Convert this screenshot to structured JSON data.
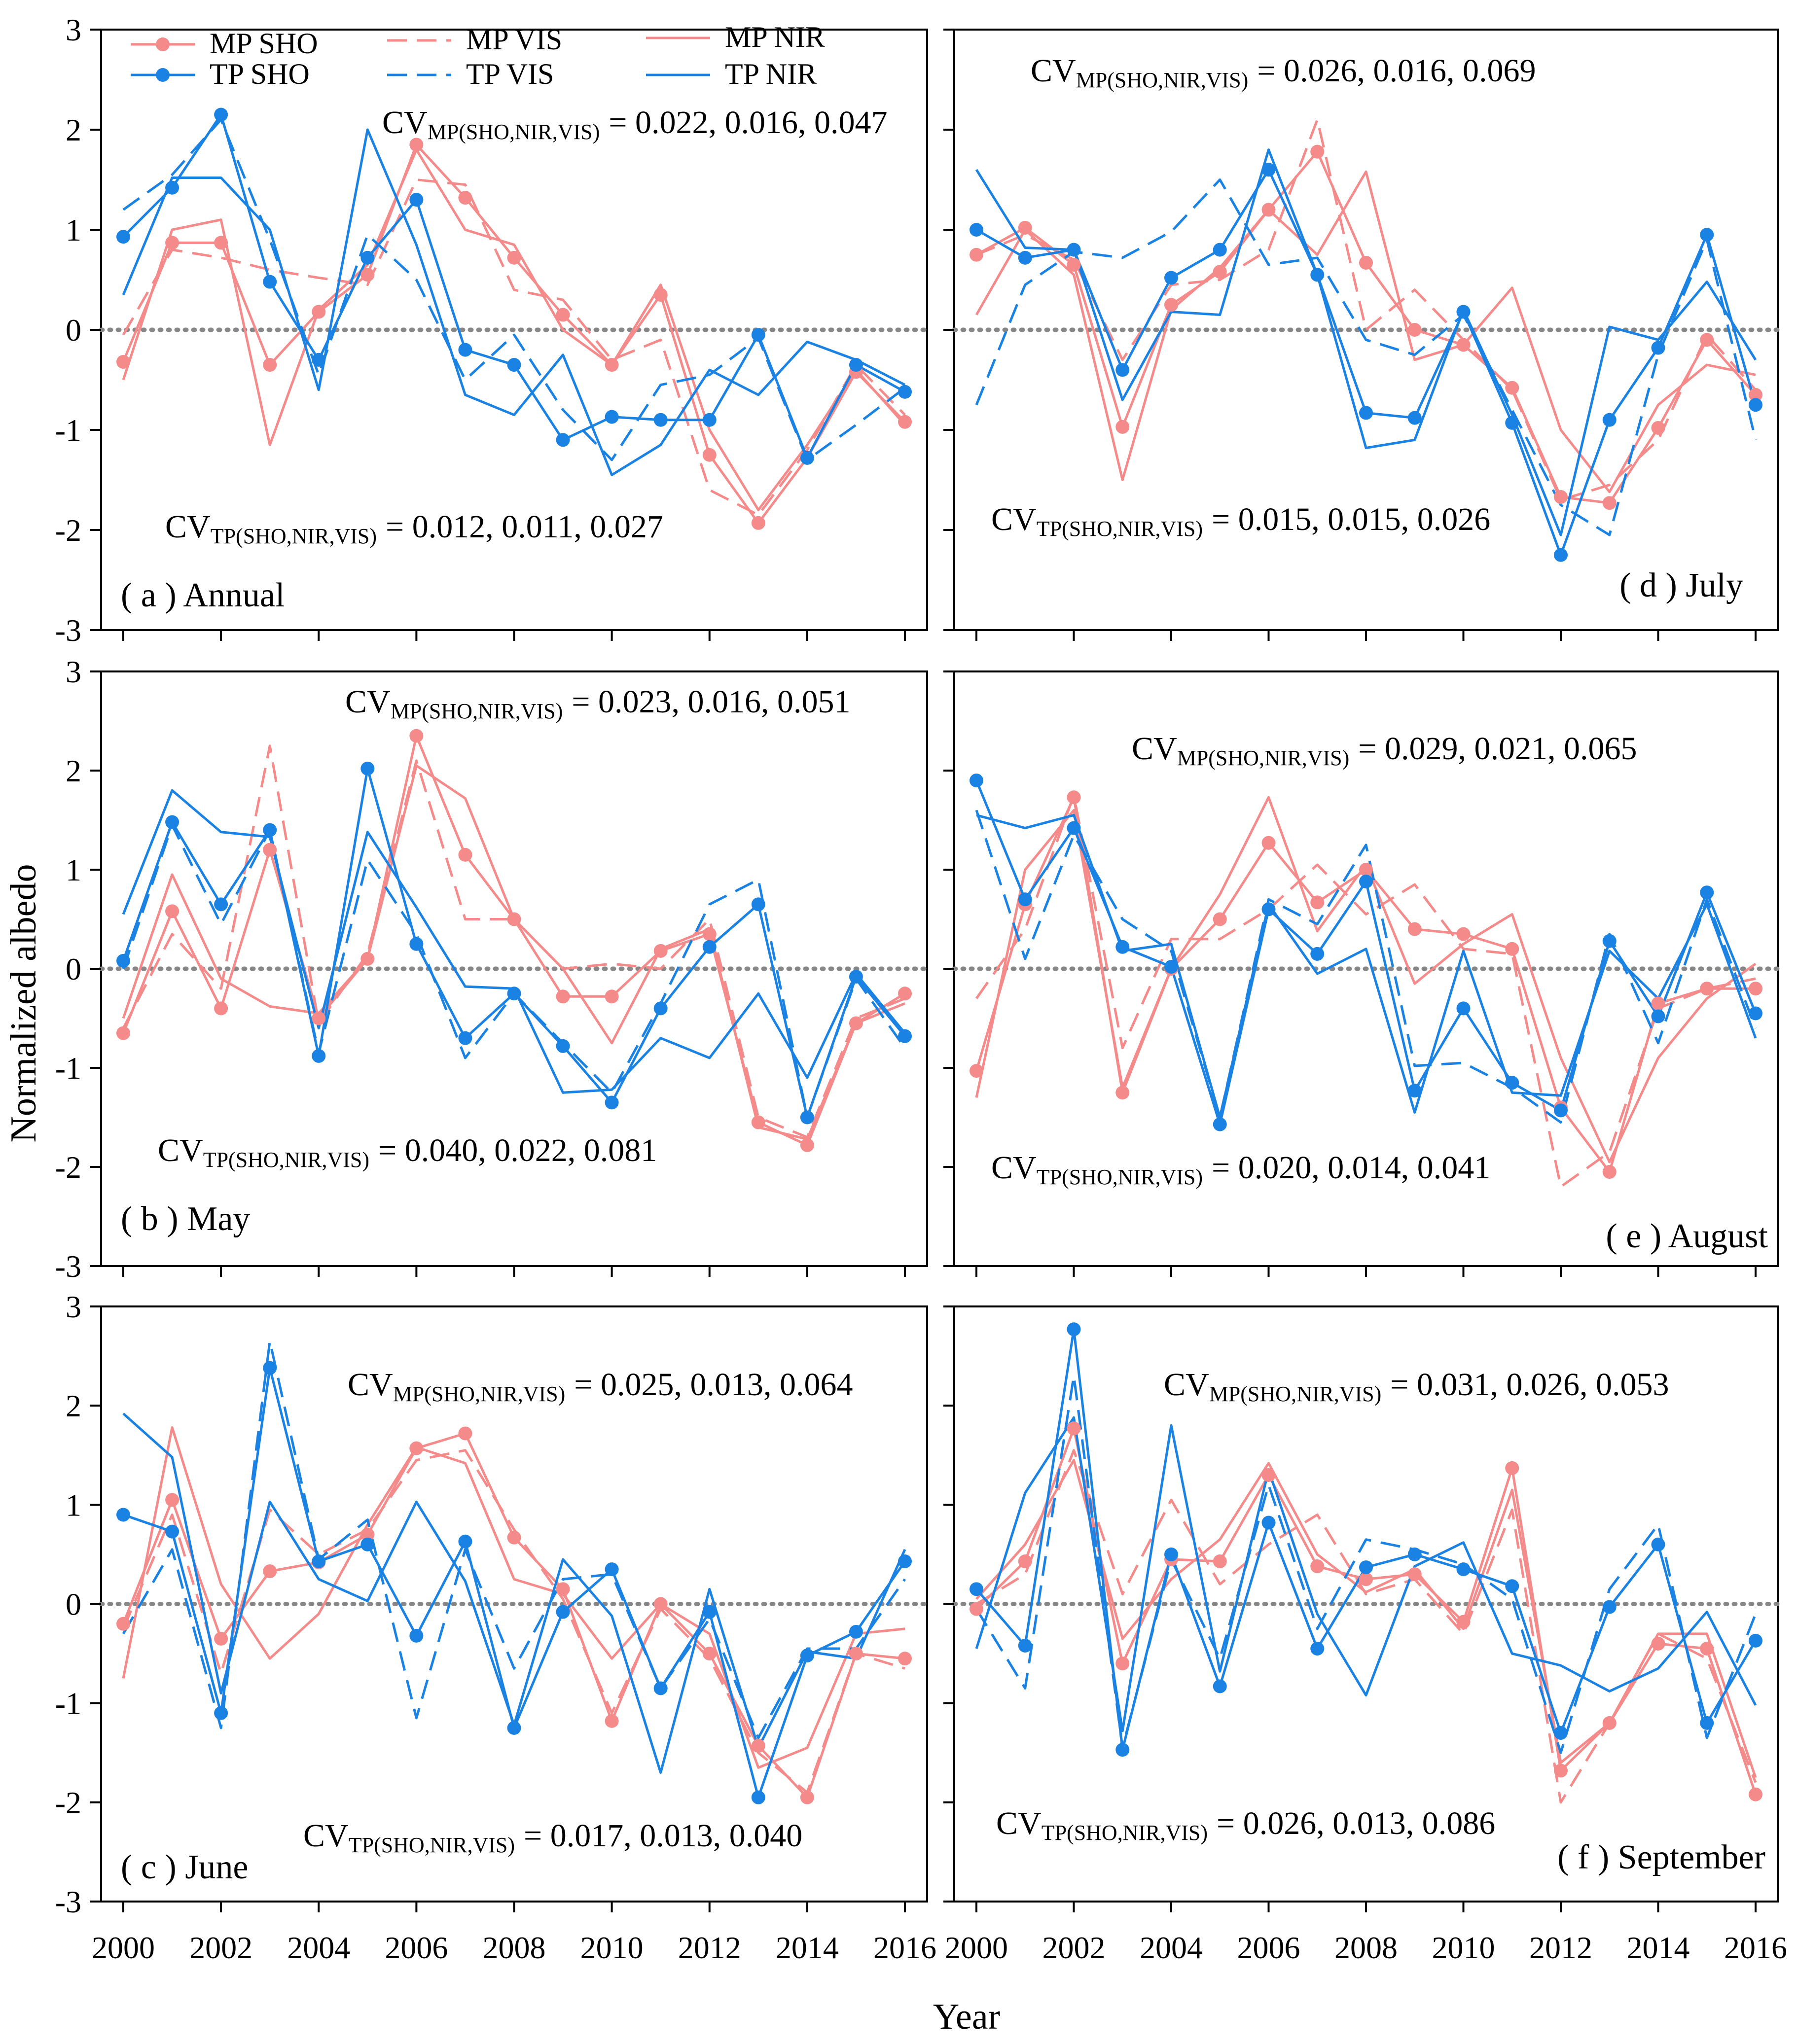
{
  "figure": {
    "ylabel": "Normalized albedo",
    "xlabel": "Year",
    "colors": {
      "MP": "#F48A8A",
      "TP": "#1A82E3",
      "zero_line": "#888888"
    },
    "legend": [
      "MP SHO",
      "MP VIS",
      "MP NIR",
      "TP SHO",
      "TP VIS",
      "TP NIR"
    ]
  },
  "chart_data": [
    {
      "type": "line",
      "title": "( a ) Annual",
      "cv_mp": "= 0.022, 0.016, 0.047",
      "cv_tp": "= 0.012, 0.011, 0.027",
      "cv_mp_label": "CV",
      "cv_mp_sub": "MP(SHO,NIR,VIS)",
      "cv_tp_label": "CV",
      "cv_tp_sub": "TP(SHO,NIR,VIS)",
      "x": [
        2000,
        2001,
        2002,
        2003,
        2004,
        2005,
        2006,
        2007,
        2008,
        2009,
        2010,
        2011,
        2012,
        2013,
        2014,
        2015,
        2016
      ],
      "xticks": [
        "2000",
        "2002",
        "2004",
        "2006",
        "2008",
        "2010",
        "2012",
        "2014",
        "2016"
      ],
      "ylim": [
        -3,
        3
      ],
      "yticks": [
        "-3",
        "-2",
        "-1",
        "0",
        "1",
        "2",
        "3"
      ],
      "series": [
        {
          "name": "MP SHO",
          "values": [
            -0.32,
            0.87,
            0.87,
            -0.35,
            0.18,
            0.55,
            1.85,
            1.32,
            0.72,
            0.15,
            -0.35,
            0.35,
            -1.25,
            -1.93,
            -1.28,
            -0.42,
            -0.92
          ]
        },
        {
          "name": "MP VIS",
          "values": [
            -0.05,
            0.8,
            0.72,
            0.6,
            0.52,
            0.45,
            1.5,
            1.45,
            0.4,
            0.3,
            -0.3,
            -0.1,
            -1.6,
            -1.85,
            -1.2,
            -0.35,
            -0.85
          ]
        },
        {
          "name": "MP NIR",
          "values": [
            -0.5,
            1.0,
            1.1,
            -1.15,
            0.2,
            0.65,
            1.8,
            1.0,
            0.85,
            0.0,
            -0.35,
            0.45,
            -1.0,
            -1.8,
            -1.15,
            -0.4,
            -0.95
          ]
        },
        {
          "name": "TP SHO",
          "values": [
            0.93,
            1.42,
            2.15,
            0.48,
            -0.3,
            0.72,
            1.3,
            -0.2,
            -0.35,
            -1.1,
            -0.87,
            -0.9,
            -0.9,
            -0.05,
            -1.28,
            -0.35,
            -0.62
          ]
        },
        {
          "name": "TP VIS",
          "values": [
            1.2,
            1.55,
            2.1,
            0.9,
            -0.45,
            0.95,
            0.5,
            -0.5,
            -0.05,
            -0.8,
            -1.3,
            -0.55,
            -0.45,
            -0.08,
            -1.3,
            -0.95,
            -0.58
          ]
        },
        {
          "name": "TP NIR",
          "values": [
            0.35,
            1.52,
            1.52,
            1.0,
            -0.6,
            2.0,
            0.85,
            -0.65,
            -0.85,
            -0.25,
            -1.45,
            -1.15,
            -0.4,
            -0.65,
            -0.12,
            -0.3,
            -0.55
          ]
        }
      ]
    },
    {
      "type": "line",
      "title": "( b ) May",
      "cv_mp": "= 0.023, 0.016, 0.051",
      "cv_tp": "= 0.040, 0.022, 0.081",
      "cv_mp_label": "CV",
      "cv_mp_sub": "MP(SHO,NIR,VIS)",
      "cv_tp_label": "CV",
      "cv_tp_sub": "TP(SHO,NIR,VIS)",
      "x": [
        2000,
        2001,
        2002,
        2003,
        2004,
        2005,
        2006,
        2007,
        2008,
        2009,
        2010,
        2011,
        2012,
        2013,
        2014,
        2015,
        2016
      ],
      "xticks": [
        "2000",
        "2002",
        "2004",
        "2006",
        "2008",
        "2010",
        "2012",
        "2014",
        "2016"
      ],
      "ylim": [
        -3,
        3
      ],
      "yticks": [
        "-3",
        "-2",
        "-1",
        "0",
        "1",
        "2",
        "3"
      ],
      "series": [
        {
          "name": "MP SHO",
          "values": [
            -0.65,
            0.58,
            -0.4,
            1.2,
            -0.5,
            0.1,
            2.35,
            1.15,
            0.5,
            -0.28,
            -0.28,
            0.18,
            0.35,
            -1.55,
            -1.78,
            -0.55,
            -0.25
          ]
        },
        {
          "name": "MP VIS",
          "values": [
            -0.6,
            0.35,
            -0.2,
            2.25,
            -0.55,
            0.15,
            2.1,
            0.5,
            0.5,
            0.0,
            0.05,
            0.0,
            0.5,
            -1.5,
            -1.7,
            -0.5,
            -0.3
          ]
        },
        {
          "name": "MP NIR",
          "values": [
            -0.5,
            0.95,
            -0.1,
            -0.38,
            -0.45,
            0.1,
            2.05,
            1.72,
            0.5,
            0.0,
            -0.75,
            0.2,
            0.4,
            -1.6,
            -1.72,
            -0.55,
            -0.35
          ]
        },
        {
          "name": "TP SHO",
          "values": [
            0.08,
            1.48,
            0.65,
            1.4,
            -0.88,
            2.02,
            0.25,
            -0.7,
            -0.25,
            -0.78,
            -1.35,
            -0.4,
            0.22,
            0.65,
            -1.5,
            -0.08,
            -0.68
          ]
        },
        {
          "name": "TP VIS",
          "values": [
            0.0,
            1.45,
            0.45,
            1.4,
            -0.85,
            1.1,
            0.35,
            -0.9,
            -0.25,
            -0.75,
            -1.25,
            -0.35,
            0.65,
            0.9,
            -1.5,
            -0.1,
            -0.8
          ]
        },
        {
          "name": "TP NIR",
          "values": [
            0.55,
            1.8,
            1.38,
            1.33,
            -0.6,
            1.38,
            0.62,
            -0.18,
            -0.2,
            -1.25,
            -1.22,
            -0.7,
            -0.9,
            -0.25,
            -1.1,
            -0.05,
            -0.65
          ]
        }
      ]
    },
    {
      "type": "line",
      "title": "( c ) June",
      "cv_mp": "= 0.025, 0.013, 0.064",
      "cv_tp": "= 0.017, 0.013, 0.040",
      "cv_mp_label": "CV",
      "cv_mp_sub": "MP(SHO,NIR,VIS)",
      "cv_tp_label": "CV",
      "cv_tp_sub": "TP(SHO,NIR,VIS)",
      "x": [
        2000,
        2001,
        2002,
        2003,
        2004,
        2005,
        2006,
        2007,
        2008,
        2009,
        2010,
        2011,
        2012,
        2013,
        2014,
        2015,
        2016
      ],
      "xticks": [
        "2000",
        "2002",
        "2004",
        "2006",
        "2008",
        "2010",
        "2012",
        "2014",
        "2016"
      ],
      "ylim": [
        -3,
        3
      ],
      "yticks": [
        "-3",
        "-2",
        "-1",
        "0",
        "1",
        "2",
        "3"
      ],
      "series": [
        {
          "name": "MP SHO",
          "values": [
            -0.2,
            1.05,
            -0.35,
            0.33,
            0.42,
            0.7,
            1.57,
            1.72,
            0.67,
            0.15,
            -1.18,
            0.0,
            -0.5,
            -1.43,
            -1.95,
            -0.5,
            -0.55
          ]
        },
        {
          "name": "MP VIS",
          "values": [
            -0.25,
            0.9,
            -0.7,
            0.95,
            0.5,
            0.75,
            1.45,
            1.55,
            0.75,
            0.05,
            -1.1,
            -0.05,
            -0.55,
            -1.5,
            -1.9,
            -0.5,
            -0.65
          ]
        },
        {
          "name": "MP NIR",
          "values": [
            -0.75,
            1.78,
            0.2,
            -0.55,
            -0.1,
            0.8,
            1.58,
            1.42,
            0.25,
            0.1,
            -0.55,
            0.0,
            -0.3,
            -1.65,
            -1.45,
            -0.3,
            -0.25
          ]
        },
        {
          "name": "TP SHO",
          "values": [
            0.9,
            0.73,
            -1.1,
            2.38,
            0.43,
            0.6,
            -0.32,
            0.63,
            -1.25,
            -0.08,
            0.35,
            -0.85,
            -0.08,
            -1.95,
            -0.52,
            -0.28,
            0.43
          ]
        },
        {
          "name": "TP VIS",
          "values": [
            -0.3,
            0.55,
            -1.25,
            2.65,
            0.45,
            0.85,
            -1.15,
            0.55,
            -0.65,
            0.25,
            0.3,
            -0.85,
            -0.15,
            -1.35,
            -0.45,
            -0.45,
            0.25
          ]
        },
        {
          "name": "TP NIR",
          "values": [
            1.92,
            1.48,
            -0.9,
            1.03,
            0.25,
            0.03,
            1.03,
            0.23,
            -1.22,
            0.45,
            -0.12,
            -1.7,
            0.15,
            -1.45,
            -0.48,
            -0.55,
            0.55
          ]
        }
      ]
    },
    {
      "type": "line",
      "title": "( d ) July",
      "cv_mp": "= 0.026, 0.016, 0.069",
      "cv_tp": "= 0.015, 0.015, 0.026",
      "cv_mp_label": "CV",
      "cv_mp_sub": "MP(SHO,NIR,VIS)",
      "cv_tp_label": "CV",
      "cv_tp_sub": "TP(SHO,NIR,VIS)",
      "x": [
        2000,
        2001,
        2002,
        2003,
        2004,
        2005,
        2006,
        2007,
        2008,
        2009,
        2010,
        2011,
        2012,
        2013,
        2014,
        2015,
        2016
      ],
      "xticks": [
        "2000",
        "2002",
        "2004",
        "2006",
        "2008",
        "2010",
        "2012",
        "2014",
        "2016"
      ],
      "ylim": [
        -3,
        3
      ],
      "yticks": [
        "-3",
        "-2",
        "-1",
        "0",
        "1",
        "2",
        "3"
      ],
      "series": [
        {
          "name": "MP SHO",
          "values": [
            0.75,
            1.02,
            0.65,
            -0.97,
            0.25,
            0.58,
            1.2,
            1.78,
            0.67,
            0.0,
            -0.15,
            -0.58,
            -1.67,
            -1.73,
            -0.98,
            -0.1,
            -0.65
          ]
        },
        {
          "name": "MP VIS",
          "values": [
            0.75,
            0.95,
            0.7,
            -0.3,
            0.45,
            0.5,
            0.8,
            2.1,
            0.0,
            0.4,
            -0.1,
            -0.6,
            -1.7,
            -1.55,
            -1.1,
            -0.05,
            -0.6
          ]
        },
        {
          "name": "MP NIR",
          "values": [
            0.15,
            1.0,
            0.55,
            -1.5,
            0.2,
            0.62,
            1.2,
            0.75,
            1.58,
            -0.3,
            -0.15,
            0.42,
            -1.0,
            -1.62,
            -0.75,
            -0.35,
            -0.45
          ]
        },
        {
          "name": "TP SHO",
          "values": [
            1.0,
            0.72,
            0.8,
            -0.4,
            0.52,
            0.8,
            1.6,
            0.55,
            -0.83,
            -0.88,
            0.18,
            -0.93,
            -2.25,
            -0.9,
            -0.18,
            0.95,
            -0.75
          ]
        },
        {
          "name": "TP VIS",
          "values": [
            -0.75,
            0.45,
            0.78,
            0.72,
            0.98,
            1.5,
            0.65,
            0.72,
            -0.1,
            -0.25,
            0.15,
            -0.8,
            -1.75,
            -2.05,
            -0.25,
            0.9,
            -1.1
          ]
        },
        {
          "name": "TP NIR",
          "values": [
            1.6,
            0.82,
            0.8,
            -0.7,
            0.18,
            0.15,
            1.8,
            0.55,
            -1.18,
            -1.1,
            0.2,
            -0.85,
            -2.05,
            0.03,
            -0.1,
            0.48,
            -0.3
          ]
        }
      ]
    },
    {
      "type": "line",
      "title": "( e ) August",
      "cv_mp": "= 0.029, 0.021, 0.065",
      "cv_tp": "= 0.020, 0.014, 0.041",
      "cv_mp_label": "CV",
      "cv_mp_sub": "MP(SHO,NIR,VIS)",
      "cv_tp_label": "CV",
      "cv_tp_sub": "TP(SHO,NIR,VIS)",
      "x": [
        2000,
        2001,
        2002,
        2003,
        2004,
        2005,
        2006,
        2007,
        2008,
        2009,
        2010,
        2011,
        2012,
        2013,
        2014,
        2015,
        2016
      ],
      "xticks": [
        "2000",
        "2002",
        "2004",
        "2006",
        "2008",
        "2010",
        "2012",
        "2014",
        "2016"
      ],
      "ylim": [
        -3,
        3
      ],
      "yticks": [
        "-3",
        "-2",
        "-1",
        "0",
        "1",
        "2",
        "3"
      ],
      "series": [
        {
          "name": "MP SHO",
          "values": [
            -1.03,
            0.65,
            1.73,
            -1.25,
            0.0,
            0.5,
            1.27,
            0.67,
            1.0,
            0.4,
            0.35,
            0.2,
            -1.4,
            -2.05,
            -0.35,
            -0.2,
            -0.2
          ]
        },
        {
          "name": "MP VIS",
          "values": [
            -0.3,
            0.4,
            1.75,
            -0.8,
            0.3,
            0.3,
            0.6,
            1.05,
            0.55,
            0.85,
            0.2,
            0.15,
            -2.2,
            -1.85,
            -0.4,
            -0.2,
            -0.1
          ]
        },
        {
          "name": "MP NIR",
          "values": [
            -1.3,
            1.0,
            1.6,
            -1.2,
            0.0,
            0.75,
            1.73,
            0.38,
            1.05,
            -0.15,
            0.25,
            0.55,
            -0.9,
            -1.95,
            -0.9,
            -0.3,
            0.05
          ]
        },
        {
          "name": "TP SHO",
          "values": [
            1.9,
            0.7,
            1.42,
            0.22,
            0.02,
            -1.57,
            0.6,
            0.15,
            0.88,
            -1.23,
            -0.4,
            -1.15,
            -1.43,
            0.28,
            -0.48,
            0.77,
            -0.45
          ]
        },
        {
          "name": "TP VIS",
          "values": [
            1.6,
            0.1,
            1.35,
            0.5,
            0.18,
            -1.5,
            0.7,
            0.45,
            1.25,
            -0.98,
            -0.95,
            -1.2,
            -1.55,
            0.35,
            -0.75,
            0.7,
            -0.6
          ]
        },
        {
          "name": "TP NIR",
          "values": [
            1.55,
            1.42,
            1.55,
            0.18,
            0.25,
            -1.5,
            0.65,
            -0.05,
            0.2,
            -1.45,
            0.18,
            -1.25,
            -1.28,
            0.18,
            -0.3,
            0.65,
            -0.7
          ]
        }
      ]
    },
    {
      "type": "line",
      "title": "( f ) September",
      "cv_mp": "= 0.031, 0.026, 0.053",
      "cv_tp": "= 0.026, 0.013, 0.086",
      "cv_mp_label": "CV",
      "cv_mp_sub": "MP(SHO,NIR,VIS)",
      "cv_tp_label": "CV",
      "cv_tp_sub": "TP(SHO,NIR,VIS)",
      "x": [
        2000,
        2001,
        2002,
        2003,
        2004,
        2005,
        2006,
        2007,
        2008,
        2009,
        2010,
        2011,
        2012,
        2013,
        2014,
        2015,
        2016
      ],
      "xticks": [
        "2000",
        "2002",
        "2004",
        "2006",
        "2008",
        "2010",
        "2012",
        "2014",
        "2016"
      ],
      "ylim": [
        -3,
        3
      ],
      "yticks": [
        "-3",
        "-2",
        "-1",
        "0",
        "1",
        "2",
        "3"
      ],
      "series": [
        {
          "name": "MP SHO",
          "values": [
            -0.05,
            0.43,
            1.77,
            -0.6,
            0.45,
            0.43,
            1.3,
            0.38,
            0.25,
            0.3,
            -0.18,
            1.37,
            -1.68,
            -1.2,
            -0.4,
            -0.45,
            -1.92
          ]
        },
        {
          "name": "MP VIS",
          "values": [
            0.0,
            0.3,
            1.55,
            0.1,
            1.05,
            0.2,
            0.6,
            0.9,
            0.1,
            0.25,
            -0.3,
            0.95,
            -2.0,
            -1.2,
            -0.3,
            -0.55,
            -1.8
          ]
        },
        {
          "name": "MP NIR",
          "values": [
            0.05,
            0.6,
            1.45,
            -0.35,
            0.25,
            0.65,
            1.42,
            0.5,
            0.12,
            0.35,
            -0.25,
            1.15,
            -1.6,
            -1.2,
            -0.3,
            -0.3,
            -1.75
          ]
        },
        {
          "name": "TP SHO",
          "values": [
            0.15,
            -0.42,
            2.77,
            -1.47,
            0.5,
            -0.83,
            0.82,
            -0.45,
            0.37,
            0.5,
            0.35,
            0.18,
            -1.3,
            -0.03,
            0.6,
            -1.2,
            -0.37
          ]
        },
        {
          "name": "TP VIS",
          "values": [
            -0.05,
            -0.85,
            2.3,
            -1.45,
            0.45,
            -0.55,
            1.2,
            -0.25,
            0.65,
            0.55,
            0.4,
            0.05,
            -1.5,
            0.15,
            0.8,
            -1.35,
            -0.1
          ]
        },
        {
          "name": "TP NIR",
          "values": [
            -0.45,
            1.12,
            1.88,
            -1.28,
            1.8,
            -0.68,
            1.35,
            -0.1,
            -0.92,
            0.38,
            0.62,
            -0.5,
            -0.62,
            -0.88,
            -0.65,
            -0.08,
            -1.02
          ]
        }
      ]
    }
  ]
}
